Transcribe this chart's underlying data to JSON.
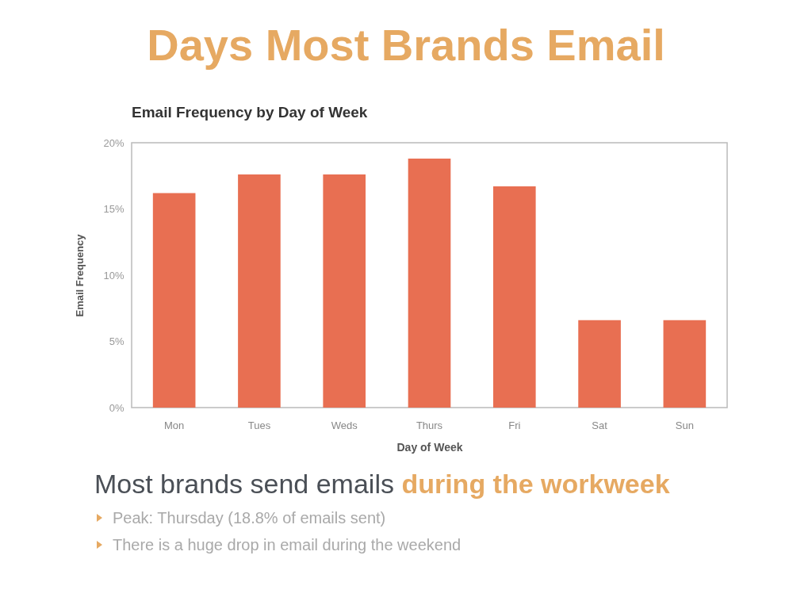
{
  "chart_data": {
    "type": "bar",
    "title": "Days Most Brands Email",
    "subtitle": "Email Frequency by Day of Week",
    "xlabel": "Day of Week",
    "ylabel": "Email Frequency",
    "categories": [
      "Mon",
      "Tues",
      "Weds",
      "Thurs",
      "Fri",
      "Sat",
      "Sun"
    ],
    "values": [
      16.2,
      17.6,
      17.6,
      18.8,
      16.7,
      6.6,
      6.6
    ],
    "color": "#e86f52",
    "ylim": [
      0,
      20
    ],
    "yticks": [
      {
        "value": 0,
        "label": "0%"
      },
      {
        "value": 5,
        "label": "5%"
      },
      {
        "value": 10,
        "label": "10%"
      },
      {
        "value": 15,
        "label": "15%"
      },
      {
        "value": 20,
        "label": "20%"
      }
    ],
    "annotations": [
      "Most brands send emails",
      "during the workweek",
      "Peak: Thursday (18.8% of emails sent)",
      "There is a huge drop in email during the weekend"
    ]
  }
}
